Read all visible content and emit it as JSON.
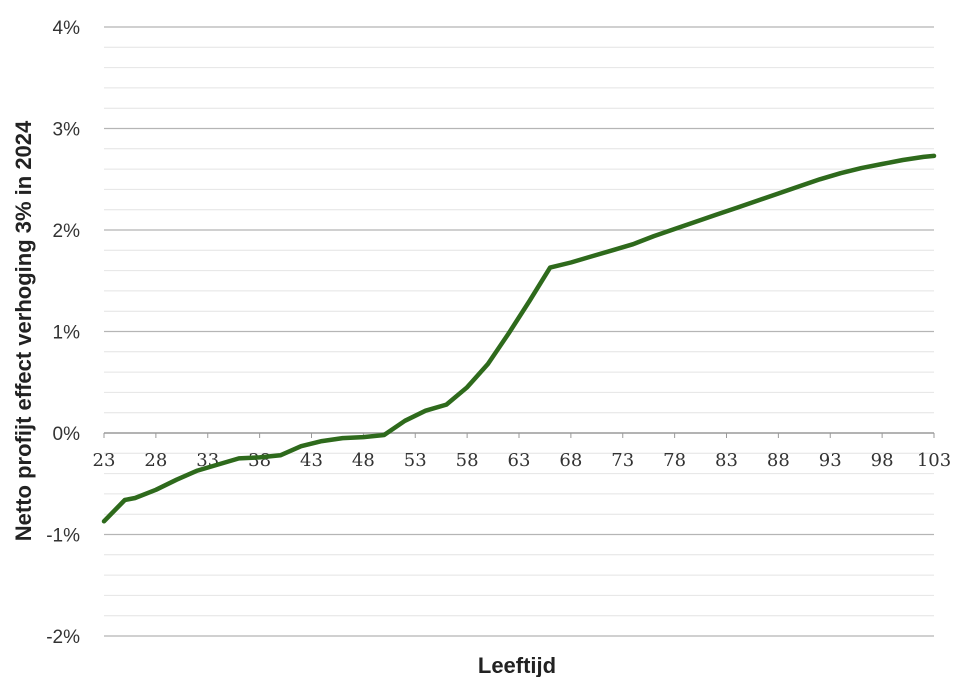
{
  "chart_data": {
    "type": "line",
    "title": "",
    "xlabel": "Leeftijd",
    "ylabel": "Netto profijt effect  verhoging 3% in 2024",
    "x_ticks": [
      "23",
      "28",
      "33",
      "38",
      "43",
      "48",
      "53",
      "58",
      "63",
      "68",
      "73",
      "78",
      "83",
      "88",
      "93",
      "98",
      "103"
    ],
    "y_ticks": [
      "-2%",
      "-1%",
      "0%",
      "1%",
      "2%",
      "3%",
      "4%"
    ],
    "xlim": [
      23,
      103
    ],
    "ylim": [
      -2,
      4
    ],
    "grid": true,
    "legend": "none",
    "series": [
      {
        "color": "#2e6a1c",
        "x": [
          23,
          25,
          26,
          28,
          30,
          32,
          34,
          36,
          38,
          40,
          42,
          44,
          46,
          48,
          50,
          52,
          54,
          56,
          58,
          60,
          62,
          64,
          66,
          68,
          70,
          72,
          74,
          76,
          78,
          80,
          82,
          84,
          86,
          88,
          90,
          92,
          94,
          96,
          98,
          100,
          102,
          103
        ],
        "y": [
          -0.87,
          -0.66,
          -0.64,
          -0.56,
          -0.46,
          -0.37,
          -0.31,
          -0.25,
          -0.24,
          -0.22,
          -0.13,
          -0.08,
          -0.05,
          -0.04,
          -0.02,
          0.12,
          0.22,
          0.28,
          0.45,
          0.68,
          0.98,
          1.3,
          1.63,
          1.68,
          1.74,
          1.8,
          1.86,
          1.94,
          2.01,
          2.08,
          2.15,
          2.22,
          2.29,
          2.36,
          2.43,
          2.5,
          2.56,
          2.61,
          2.65,
          2.69,
          2.72,
          2.73
        ]
      }
    ]
  }
}
